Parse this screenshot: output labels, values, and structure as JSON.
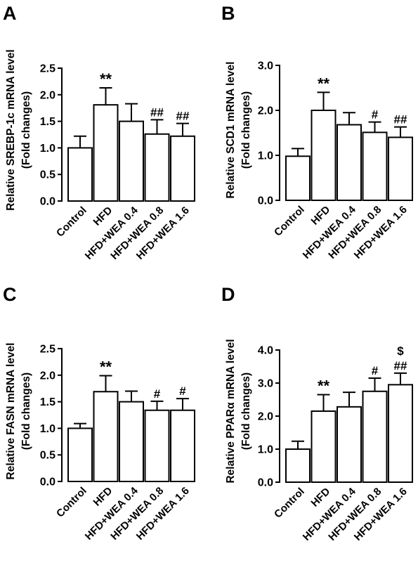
{
  "chart_data": [
    {
      "panel": "A",
      "type": "bar",
      "title": "",
      "ylabel_line1": "Relative SREBP-1c mRNA level",
      "ylabel_line2": "(Fold changes)",
      "ylim": [
        0,
        2.5
      ],
      "yticks": [
        "0.0",
        "0.5",
        "1.0",
        "1.5",
        "2.0",
        "2.5"
      ],
      "categories": [
        "Control",
        "HFD",
        "HFD+WEA 0.4",
        "HFD+WEA 0.8",
        "HFD+WEA 1.6"
      ],
      "values": [
        1.0,
        1.81,
        1.5,
        1.26,
        1.22
      ],
      "errors": [
        0.22,
        0.32,
        0.33,
        0.27,
        0.24
      ],
      "annotations": [
        [],
        [
          "**"
        ],
        [],
        [
          "##"
        ],
        [
          "##"
        ]
      ]
    },
    {
      "panel": "B",
      "type": "bar",
      "title": "",
      "ylabel_line1": "Relative SCD1 mRNA level",
      "ylabel_line2": "(Fold changes)",
      "ylim": [
        0,
        3.0
      ],
      "yticks": [
        "0.0",
        "1.0",
        "2.0",
        "3.0"
      ],
      "categories": [
        "Control",
        "HFD",
        "HFD+WEA 0.4",
        "HFD+WEA 0.8",
        "HFD+WEA 1.6"
      ],
      "values": [
        0.98,
        2.0,
        1.68,
        1.51,
        1.4
      ],
      "errors": [
        0.17,
        0.4,
        0.27,
        0.23,
        0.23
      ],
      "annotations": [
        [],
        [
          "**"
        ],
        [],
        [
          "#"
        ],
        [
          "##"
        ]
      ]
    },
    {
      "panel": "C",
      "type": "bar",
      "title": "",
      "ylabel_line1": "Relative FASN mRNA level",
      "ylabel_line2": "(Fold changes)",
      "ylim": [
        0,
        2.5
      ],
      "yticks": [
        "0.0",
        "0.5",
        "1.0",
        "1.5",
        "2.0",
        "2.5"
      ],
      "categories": [
        "Control",
        "HFD",
        "HFD+WEA 0.4",
        "HFD+WEA 0.8",
        "HFD+WEA 1.6"
      ],
      "values": [
        1.0,
        1.69,
        1.5,
        1.34,
        1.34
      ],
      "errors": [
        0.09,
        0.3,
        0.2,
        0.17,
        0.22
      ],
      "annotations": [
        [],
        [
          "**"
        ],
        [],
        [
          "#"
        ],
        [
          "#"
        ]
      ]
    },
    {
      "panel": "D",
      "type": "bar",
      "title": "",
      "ylabel_line1": "Relative PPARα mRNA level",
      "ylabel_line2": "(Fold changes)",
      "ylim": [
        0,
        4.0
      ],
      "yticks": [
        "0.0",
        "1.0",
        "2.0",
        "3.0",
        "4.0"
      ],
      "categories": [
        "Control",
        "HFD",
        "HFD+WEA 0.4",
        "HFD+WEA 0.8",
        "HFD+WEA 1.6"
      ],
      "values": [
        1.0,
        2.15,
        2.28,
        2.75,
        2.95
      ],
      "errors": [
        0.24,
        0.5,
        0.44,
        0.4,
        0.35
      ],
      "annotations": [
        [],
        [
          "**"
        ],
        [],
        [
          "#"
        ],
        [
          "##",
          "$"
        ]
      ]
    }
  ]
}
